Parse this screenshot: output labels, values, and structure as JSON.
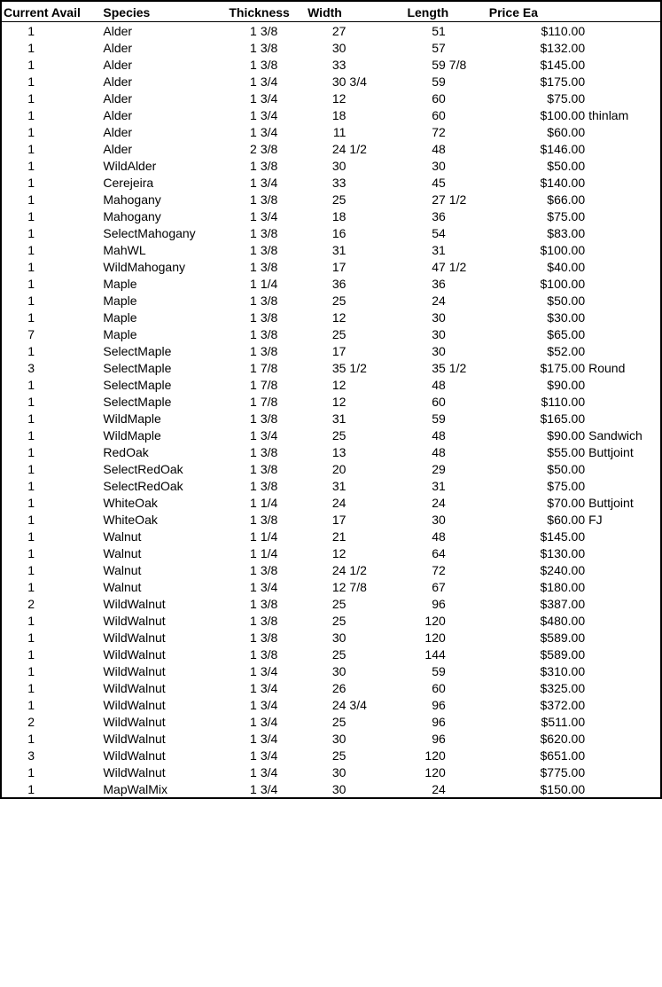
{
  "headers": {
    "avail": "Current Avail",
    "species": "Species",
    "thickness": "Thickness",
    "width": "Width",
    "length": "Length",
    "price": "Price Ea"
  },
  "rows": [
    {
      "avail": "1",
      "species": "Alder",
      "tw": "1",
      "tf": "3/8",
      "ww": "27",
      "wf": "",
      "lw": "51",
      "lf": "",
      "price": "$110.00",
      "note": ""
    },
    {
      "avail": "1",
      "species": "Alder",
      "tw": "1",
      "tf": "3/8",
      "ww": "30",
      "wf": "",
      "lw": "57",
      "lf": "",
      "price": "$132.00",
      "note": ""
    },
    {
      "avail": "1",
      "species": "Alder",
      "tw": "1",
      "tf": "3/8",
      "ww": "33",
      "wf": "",
      "lw": "59",
      "lf": "7/8",
      "price": "$145.00",
      "note": ""
    },
    {
      "avail": "1",
      "species": "Alder",
      "tw": "1",
      "tf": "3/4",
      "ww": "30",
      "wf": "3/4",
      "lw": "59",
      "lf": "",
      "price": "$175.00",
      "note": ""
    },
    {
      "avail": "1",
      "species": "Alder",
      "tw": "1",
      "tf": "3/4",
      "ww": "12",
      "wf": "",
      "lw": "60",
      "lf": "",
      "price": "$75.00",
      "note": ""
    },
    {
      "avail": "1",
      "species": "Alder",
      "tw": "1",
      "tf": "3/4",
      "ww": "18",
      "wf": "",
      "lw": "60",
      "lf": "",
      "price": "$100.00",
      "note": "thinlam"
    },
    {
      "avail": "1",
      "species": "Alder",
      "tw": "1",
      "tf": "3/4",
      "ww": "11",
      "wf": "",
      "lw": "72",
      "lf": "",
      "price": "$60.00",
      "note": ""
    },
    {
      "avail": "1",
      "species": "Alder",
      "tw": "2",
      "tf": "3/8",
      "ww": "24",
      "wf": "1/2",
      "lw": "48",
      "lf": "",
      "price": "$146.00",
      "note": ""
    },
    {
      "avail": "1",
      "species": "WildAlder",
      "tw": "1",
      "tf": "3/8",
      "ww": "30",
      "wf": "",
      "lw": "30",
      "lf": "",
      "price": "$50.00",
      "note": ""
    },
    {
      "avail": "1",
      "species": "Cerejeira",
      "tw": "1",
      "tf": "3/4",
      "ww": "33",
      "wf": "",
      "lw": "45",
      "lf": "",
      "price": "$140.00",
      "note": ""
    },
    {
      "avail": "1",
      "species": "Mahogany",
      "tw": "1",
      "tf": "3/8",
      "ww": "25",
      "wf": "",
      "lw": "27",
      "lf": "1/2",
      "price": "$66.00",
      "note": ""
    },
    {
      "avail": "1",
      "species": "Mahogany",
      "tw": "1",
      "tf": "3/4",
      "ww": "18",
      "wf": "",
      "lw": "36",
      "lf": "",
      "price": "$75.00",
      "note": ""
    },
    {
      "avail": "1",
      "species": "SelectMahogany",
      "tw": "1",
      "tf": "3/8",
      "ww": "16",
      "wf": "",
      "lw": "54",
      "lf": "",
      "price": "$83.00",
      "note": ""
    },
    {
      "avail": "1",
      "species": "MahWL",
      "tw": "1",
      "tf": "3/8",
      "ww": "31",
      "wf": "",
      "lw": "31",
      "lf": "",
      "price": "$100.00",
      "note": ""
    },
    {
      "avail": "1",
      "species": "WildMahogany",
      "tw": "1",
      "tf": "3/8",
      "ww": "17",
      "wf": "",
      "lw": "47",
      "lf": "1/2",
      "price": "$40.00",
      "note": ""
    },
    {
      "avail": "1",
      "species": "Maple",
      "tw": "1",
      "tf": "1/4",
      "ww": "36",
      "wf": "",
      "lw": "36",
      "lf": "",
      "price": "$100.00",
      "note": ""
    },
    {
      "avail": "1",
      "species": "Maple",
      "tw": "1",
      "tf": "3/8",
      "ww": "25",
      "wf": "",
      "lw": "24",
      "lf": "",
      "price": "$50.00",
      "note": ""
    },
    {
      "avail": "1",
      "species": "Maple",
      "tw": "1",
      "tf": "3/8",
      "ww": "12",
      "wf": "",
      "lw": "30",
      "lf": "",
      "price": "$30.00",
      "note": ""
    },
    {
      "avail": "7",
      "species": "Maple",
      "tw": "1",
      "tf": "3/8",
      "ww": "25",
      "wf": "",
      "lw": "30",
      "lf": "",
      "price": "$65.00",
      "note": ""
    },
    {
      "avail": "1",
      "species": "SelectMaple",
      "tw": "1",
      "tf": "3/8",
      "ww": "17",
      "wf": "",
      "lw": "30",
      "lf": "",
      "price": "$52.00",
      "note": ""
    },
    {
      "avail": "3",
      "species": "SelectMaple",
      "tw": "1",
      "tf": "7/8",
      "ww": "35",
      "wf": "1/2",
      "lw": "35",
      "lf": "1/2",
      "price": "$175.00",
      "note": "Round"
    },
    {
      "avail": "1",
      "species": "SelectMaple",
      "tw": "1",
      "tf": "7/8",
      "ww": "12",
      "wf": "",
      "lw": "48",
      "lf": "",
      "price": "$90.00",
      "note": ""
    },
    {
      "avail": "1",
      "species": "SelectMaple",
      "tw": "1",
      "tf": "7/8",
      "ww": "12",
      "wf": "",
      "lw": "60",
      "lf": "",
      "price": "$110.00",
      "note": ""
    },
    {
      "avail": "1",
      "species": "WildMaple",
      "tw": "1",
      "tf": "3/8",
      "ww": "31",
      "wf": "",
      "lw": "59",
      "lf": "",
      "price": "$165.00",
      "note": ""
    },
    {
      "avail": "1",
      "species": "WildMaple",
      "tw": "1",
      "tf": "3/4",
      "ww": "25",
      "wf": "",
      "lw": "48",
      "lf": "",
      "price": "$90.00",
      "note": "Sandwich"
    },
    {
      "avail": "1",
      "species": "RedOak",
      "tw": "1",
      "tf": "3/8",
      "ww": "13",
      "wf": "",
      "lw": "48",
      "lf": "",
      "price": "$55.00",
      "note": "Buttjoint"
    },
    {
      "avail": "1",
      "species": "SelectRedOak",
      "tw": "1",
      "tf": "3/8",
      "ww": "20",
      "wf": "",
      "lw": "29",
      "lf": "",
      "price": "$50.00",
      "note": ""
    },
    {
      "avail": "1",
      "species": "SelectRedOak",
      "tw": "1",
      "tf": "3/8",
      "ww": "31",
      "wf": "",
      "lw": "31",
      "lf": "",
      "price": "$75.00",
      "note": ""
    },
    {
      "avail": "1",
      "species": "WhiteOak",
      "tw": "1",
      "tf": "1/4",
      "ww": "24",
      "wf": "",
      "lw": "24",
      "lf": "",
      "price": "$70.00",
      "note": "Buttjoint"
    },
    {
      "avail": "1",
      "species": "WhiteOak",
      "tw": "1",
      "tf": "3/8",
      "ww": "17",
      "wf": "",
      "lw": "30",
      "lf": "",
      "price": "$60.00",
      "note": "FJ"
    },
    {
      "avail": "1",
      "species": "Walnut",
      "tw": "1",
      "tf": "1/4",
      "ww": "21",
      "wf": "",
      "lw": "48",
      "lf": "",
      "price": "$145.00",
      "note": ""
    },
    {
      "avail": "1",
      "species": "Walnut",
      "tw": "1",
      "tf": "1/4",
      "ww": "12",
      "wf": "",
      "lw": "64",
      "lf": "",
      "price": "$130.00",
      "note": ""
    },
    {
      "avail": "1",
      "species": "Walnut",
      "tw": "1",
      "tf": "3/8",
      "ww": "24",
      "wf": "1/2",
      "lw": "72",
      "lf": "",
      "price": "$240.00",
      "note": ""
    },
    {
      "avail": "1",
      "species": "Walnut",
      "tw": "1",
      "tf": "3/4",
      "ww": "12",
      "wf": "7/8",
      "lw": "67",
      "lf": "",
      "price": "$180.00",
      "note": ""
    },
    {
      "avail": "2",
      "species": "WildWalnut",
      "tw": "1",
      "tf": "3/8",
      "ww": "25",
      "wf": "",
      "lw": "96",
      "lf": "",
      "price": "$387.00",
      "note": ""
    },
    {
      "avail": "1",
      "species": "WildWalnut",
      "tw": "1",
      "tf": "3/8",
      "ww": "25",
      "wf": "",
      "lw": "120",
      "lf": "",
      "price": "$480.00",
      "note": ""
    },
    {
      "avail": "1",
      "species": "WildWalnut",
      "tw": "1",
      "tf": "3/8",
      "ww": "30",
      "wf": "",
      "lw": "120",
      "lf": "",
      "price": "$589.00",
      "note": ""
    },
    {
      "avail": "1",
      "species": "WildWalnut",
      "tw": "1",
      "tf": "3/8",
      "ww": "25",
      "wf": "",
      "lw": "144",
      "lf": "",
      "price": "$589.00",
      "note": ""
    },
    {
      "avail": "1",
      "species": "WildWalnut",
      "tw": "1",
      "tf": "3/4",
      "ww": "30",
      "wf": "",
      "lw": "59",
      "lf": "",
      "price": "$310.00",
      "note": ""
    },
    {
      "avail": "1",
      "species": "WildWalnut",
      "tw": "1",
      "tf": "3/4",
      "ww": "26",
      "wf": "",
      "lw": "60",
      "lf": "",
      "price": "$325.00",
      "note": ""
    },
    {
      "avail": "1",
      "species": "WildWalnut",
      "tw": "1",
      "tf": "3/4",
      "ww": "24",
      "wf": "3/4",
      "lw": "96",
      "lf": "",
      "price": "$372.00",
      "note": ""
    },
    {
      "avail": "2",
      "species": "WildWalnut",
      "tw": "1",
      "tf": "3/4",
      "ww": "25",
      "wf": "",
      "lw": "96",
      "lf": "",
      "price": "$511.00",
      "note": ""
    },
    {
      "avail": "1",
      "species": "WildWalnut",
      "tw": "1",
      "tf": "3/4",
      "ww": "30",
      "wf": "",
      "lw": "96",
      "lf": "",
      "price": "$620.00",
      "note": ""
    },
    {
      "avail": "3",
      "species": "WildWalnut",
      "tw": "1",
      "tf": "3/4",
      "ww": "25",
      "wf": "",
      "lw": "120",
      "lf": "",
      "price": "$651.00",
      "note": ""
    },
    {
      "avail": "1",
      "species": "WildWalnut",
      "tw": "1",
      "tf": "3/4",
      "ww": "30",
      "wf": "",
      "lw": "120",
      "lf": "",
      "price": "$775.00",
      "note": ""
    },
    {
      "avail": "1",
      "species": "MapWalMix",
      "tw": "1",
      "tf": "3/4",
      "ww": "30",
      "wf": "",
      "lw": "24",
      "lf": "",
      "price": "$150.00",
      "note": ""
    }
  ]
}
